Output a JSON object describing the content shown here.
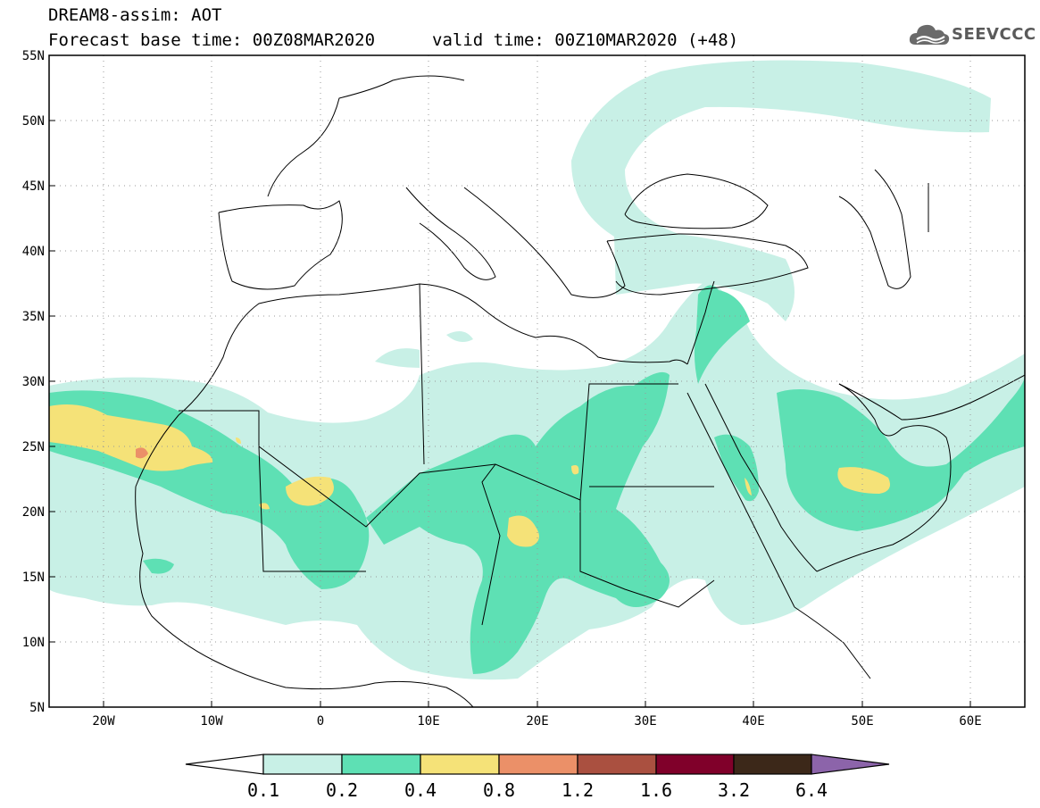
{
  "title": {
    "line1": "DREAM8-assim: AOT",
    "line2": "Forecast base time: 00Z08MAR2020",
    "line2b": "valid time: 00Z10MAR2020 (+48)"
  },
  "logo": {
    "text": "SEEVCCC",
    "icon": "cloud-icon"
  },
  "map": {
    "lon_range": [
      -25,
      65
    ],
    "lat_range": [
      5,
      55
    ],
    "lat_ticks": [
      "55N",
      "50N",
      "45N",
      "40N",
      "35N",
      "30N",
      "25N",
      "20N",
      "15N",
      "10N",
      "5N"
    ],
    "lon_ticks": [
      "20W",
      "10W",
      "0",
      "10E",
      "20E",
      "30E",
      "40E",
      "50E",
      "60E"
    ],
    "grid": "dotted"
  },
  "colorbar": {
    "labels": [
      "0.1",
      "0.2",
      "0.4",
      "0.8",
      "1.2",
      "1.6",
      "3.2",
      "6.4"
    ],
    "colors": [
      "#ffffff",
      "#c8f0e6",
      "#5ee0b4",
      "#f5e278",
      "#eb9068",
      "#aa5040",
      "#80002a",
      "#3c2819",
      "#8c64aa"
    ]
  }
}
